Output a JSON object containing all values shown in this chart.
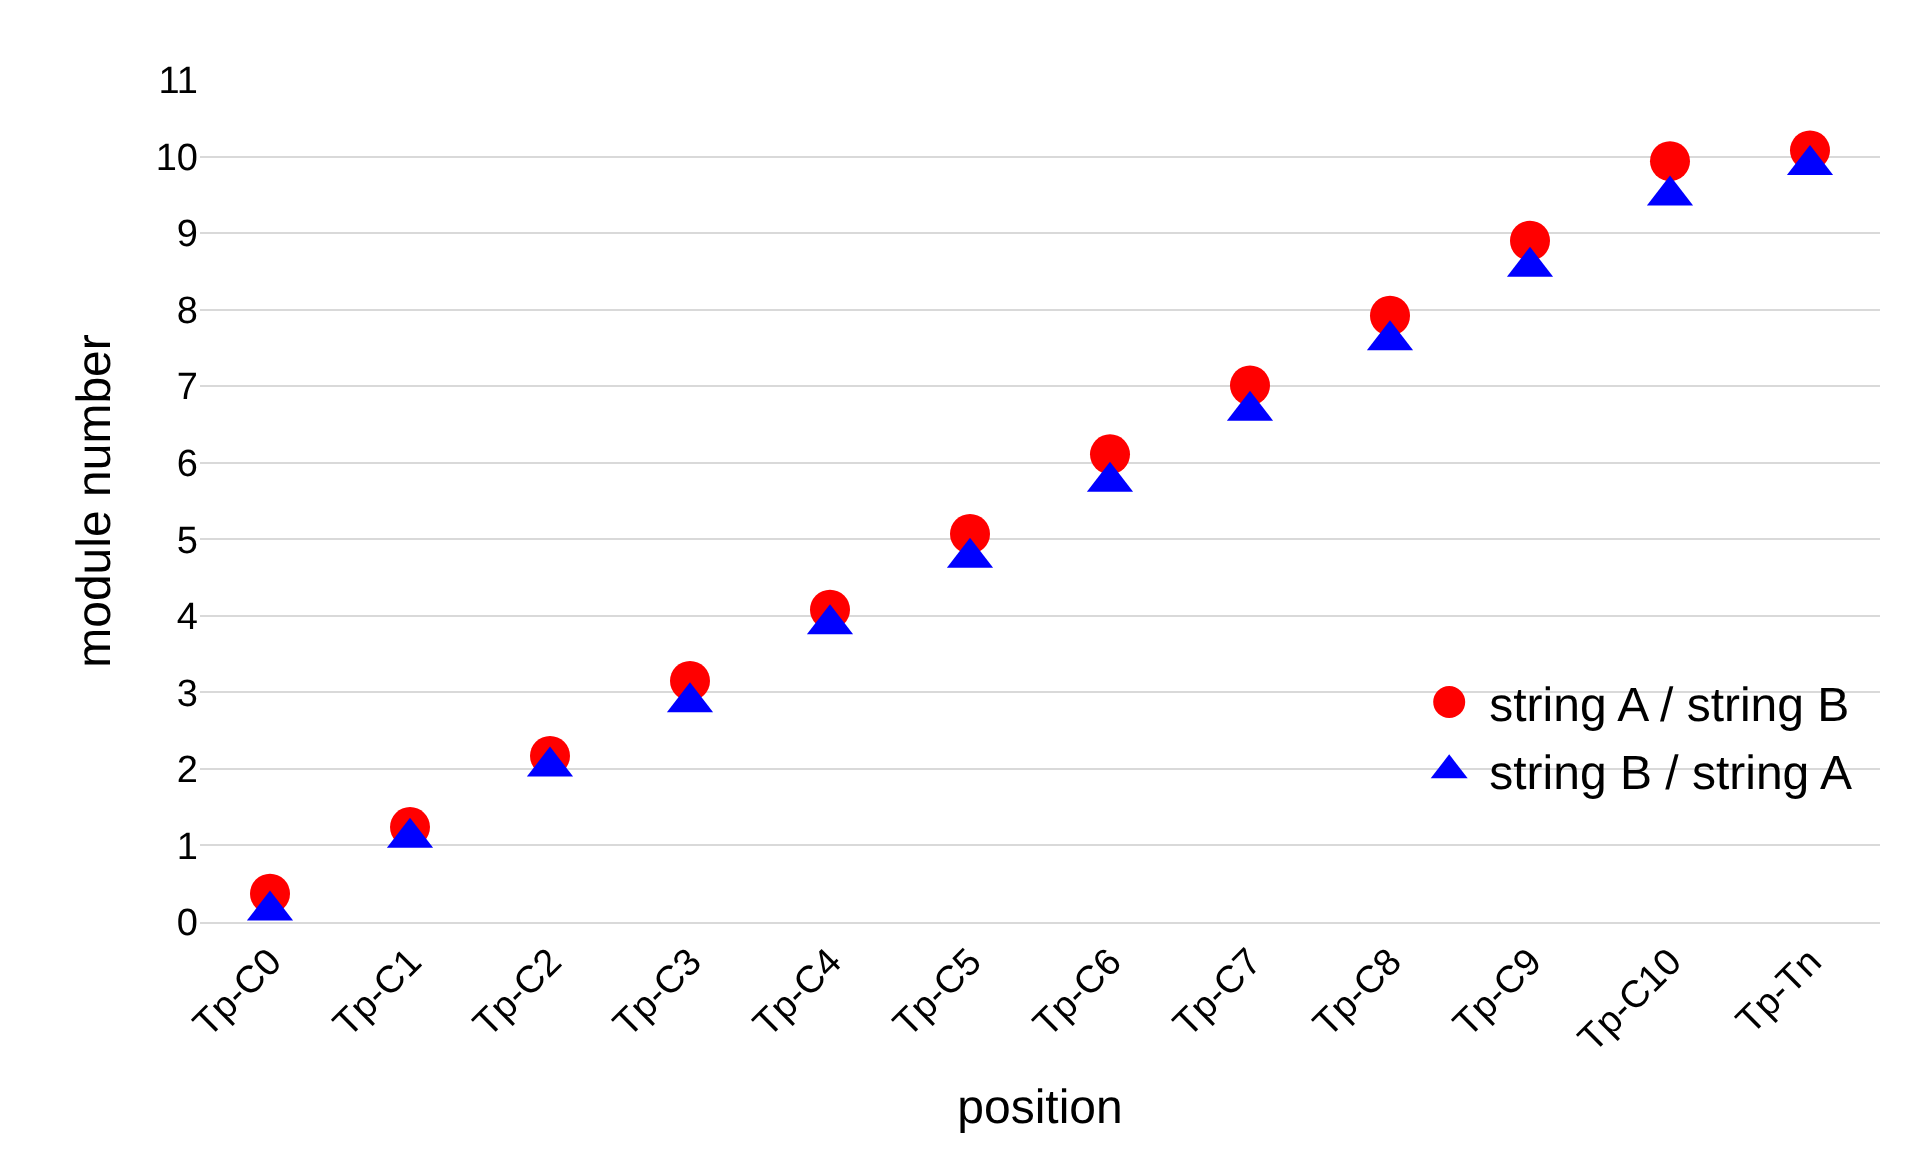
{
  "chart_data": {
    "type": "scatter",
    "xlabel": "position",
    "ylabel": "module number",
    "categories": [
      "Tp-C0",
      "Tp-C1",
      "Tp-C2",
      "Tp-C3",
      "Tp-C4",
      "Tp-C5",
      "Tp-C6",
      "Tp-C7",
      "Tp-C8",
      "Tp-C9",
      "Tp-C10",
      "Tp-Tn"
    ],
    "series": [
      {
        "name": "string A / string B",
        "color": "#ff0000",
        "marker": "circle",
        "values": [
          0.37,
          1.24,
          2.17,
          3.15,
          4.08,
          5.07,
          6.11,
          7.01,
          7.92,
          8.9,
          9.94,
          10.08
        ]
      },
      {
        "name": "string B / string A",
        "color": "#0000ff",
        "marker": "triangle",
        "values": [
          0.15,
          1.1,
          2.03,
          2.87,
          3.89,
          4.76,
          5.75,
          6.68,
          7.6,
          8.56,
          9.49,
          9.89
        ]
      }
    ],
    "ylim": [
      0,
      11
    ],
    "yticks": [
      0,
      1,
      2,
      3,
      4,
      5,
      6,
      7,
      8,
      9,
      10,
      11
    ],
    "grid": "y",
    "legend": "bottom right"
  }
}
